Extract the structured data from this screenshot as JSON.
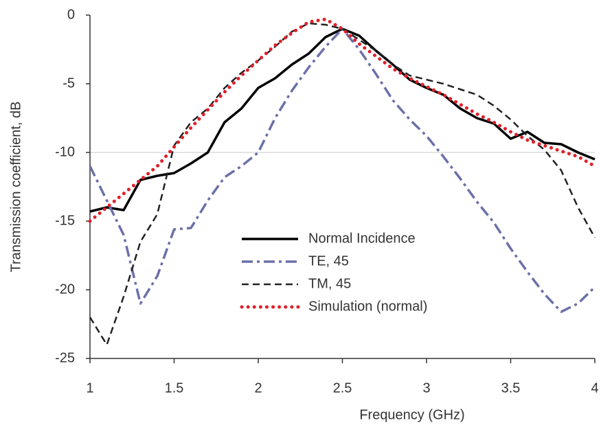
{
  "chart_data": {
    "type": "line",
    "x_label": "Frequency (GHz)",
    "y_label": "Transmission coefficient, dB",
    "x": [
      1.0,
      1.1,
      1.2,
      1.3,
      1.4,
      1.5,
      1.6,
      1.7,
      1.8,
      1.9,
      2.0,
      2.1,
      2.2,
      2.3,
      2.4,
      2.5,
      2.6,
      2.7,
      2.8,
      2.9,
      3.0,
      3.1,
      3.2,
      3.3,
      3.4,
      3.5,
      3.6,
      3.7,
      3.8,
      3.9,
      4.0
    ],
    "series": [
      {
        "name": "Normal Incidence",
        "color": "#000000",
        "dash": "solid",
        "values": [
          -14.3,
          -14.0,
          -14.2,
          -12.0,
          -11.7,
          -11.5,
          -10.8,
          -10.0,
          -7.8,
          -6.8,
          -5.3,
          -4.6,
          -3.6,
          -2.8,
          -1.6,
          -1.0,
          -1.5,
          -2.6,
          -3.6,
          -4.7,
          -5.3,
          -5.8,
          -6.8,
          -7.5,
          -7.9,
          -9.0,
          -8.5,
          -9.3,
          -9.4,
          -10.0,
          -10.5
        ]
      },
      {
        "name": "TE, 45",
        "color": "#6b70a8",
        "dash": "dashdot",
        "values": [
          -11.0,
          -13.5,
          -16.0,
          -21.0,
          -19.0,
          -15.6,
          -15.5,
          -13.5,
          -11.8,
          -11.0,
          -10.0,
          -7.5,
          -5.5,
          -3.8,
          -2.3,
          -1.0,
          -2.5,
          -4.3,
          -6.2,
          -7.6,
          -8.8,
          -10.3,
          -11.9,
          -13.6,
          -15.1,
          -17.0,
          -18.7,
          -20.3,
          -21.6,
          -21.0,
          -19.8
        ]
      },
      {
        "name": "TM, 45",
        "color": "#222222",
        "dash": "dashed",
        "values": [
          -22.0,
          -24.0,
          -20.5,
          -16.5,
          -14.5,
          -9.5,
          -7.8,
          -6.8,
          -5.3,
          -4.2,
          -3.3,
          -2.3,
          -1.2,
          -0.6,
          -0.7,
          -1.0,
          -1.8,
          -2.6,
          -3.6,
          -4.4,
          -4.7,
          -5.0,
          -5.4,
          -5.8,
          -6.6,
          -7.6,
          -8.8,
          -9.8,
          -11.3,
          -14.0,
          -16.2
        ]
      },
      {
        "name": "Simulation (normal)",
        "color": "#e0202a",
        "dash": "dotted",
        "values": [
          -15.0,
          -14.0,
          -13.0,
          -12.0,
          -11.0,
          -9.6,
          -8.2,
          -6.9,
          -5.6,
          -4.4,
          -3.3,
          -2.2,
          -1.3,
          -0.5,
          -0.3,
          -1.0,
          -2.1,
          -3.0,
          -3.9,
          -4.6,
          -5.2,
          -5.8,
          -6.5,
          -7.2,
          -7.8,
          -8.5,
          -9.1,
          -9.5,
          -9.9,
          -10.3,
          -11.0
        ]
      }
    ],
    "xlim": [
      1,
      4
    ],
    "xticks": [
      1,
      1.5,
      2,
      2.5,
      3,
      3.5,
      4
    ],
    "ylim": [
      -25,
      0
    ],
    "yticks": [
      0,
      -5,
      -10,
      -15,
      -20,
      -25
    ],
    "gridlines": [
      -10
    ],
    "legend": "lower-center"
  }
}
